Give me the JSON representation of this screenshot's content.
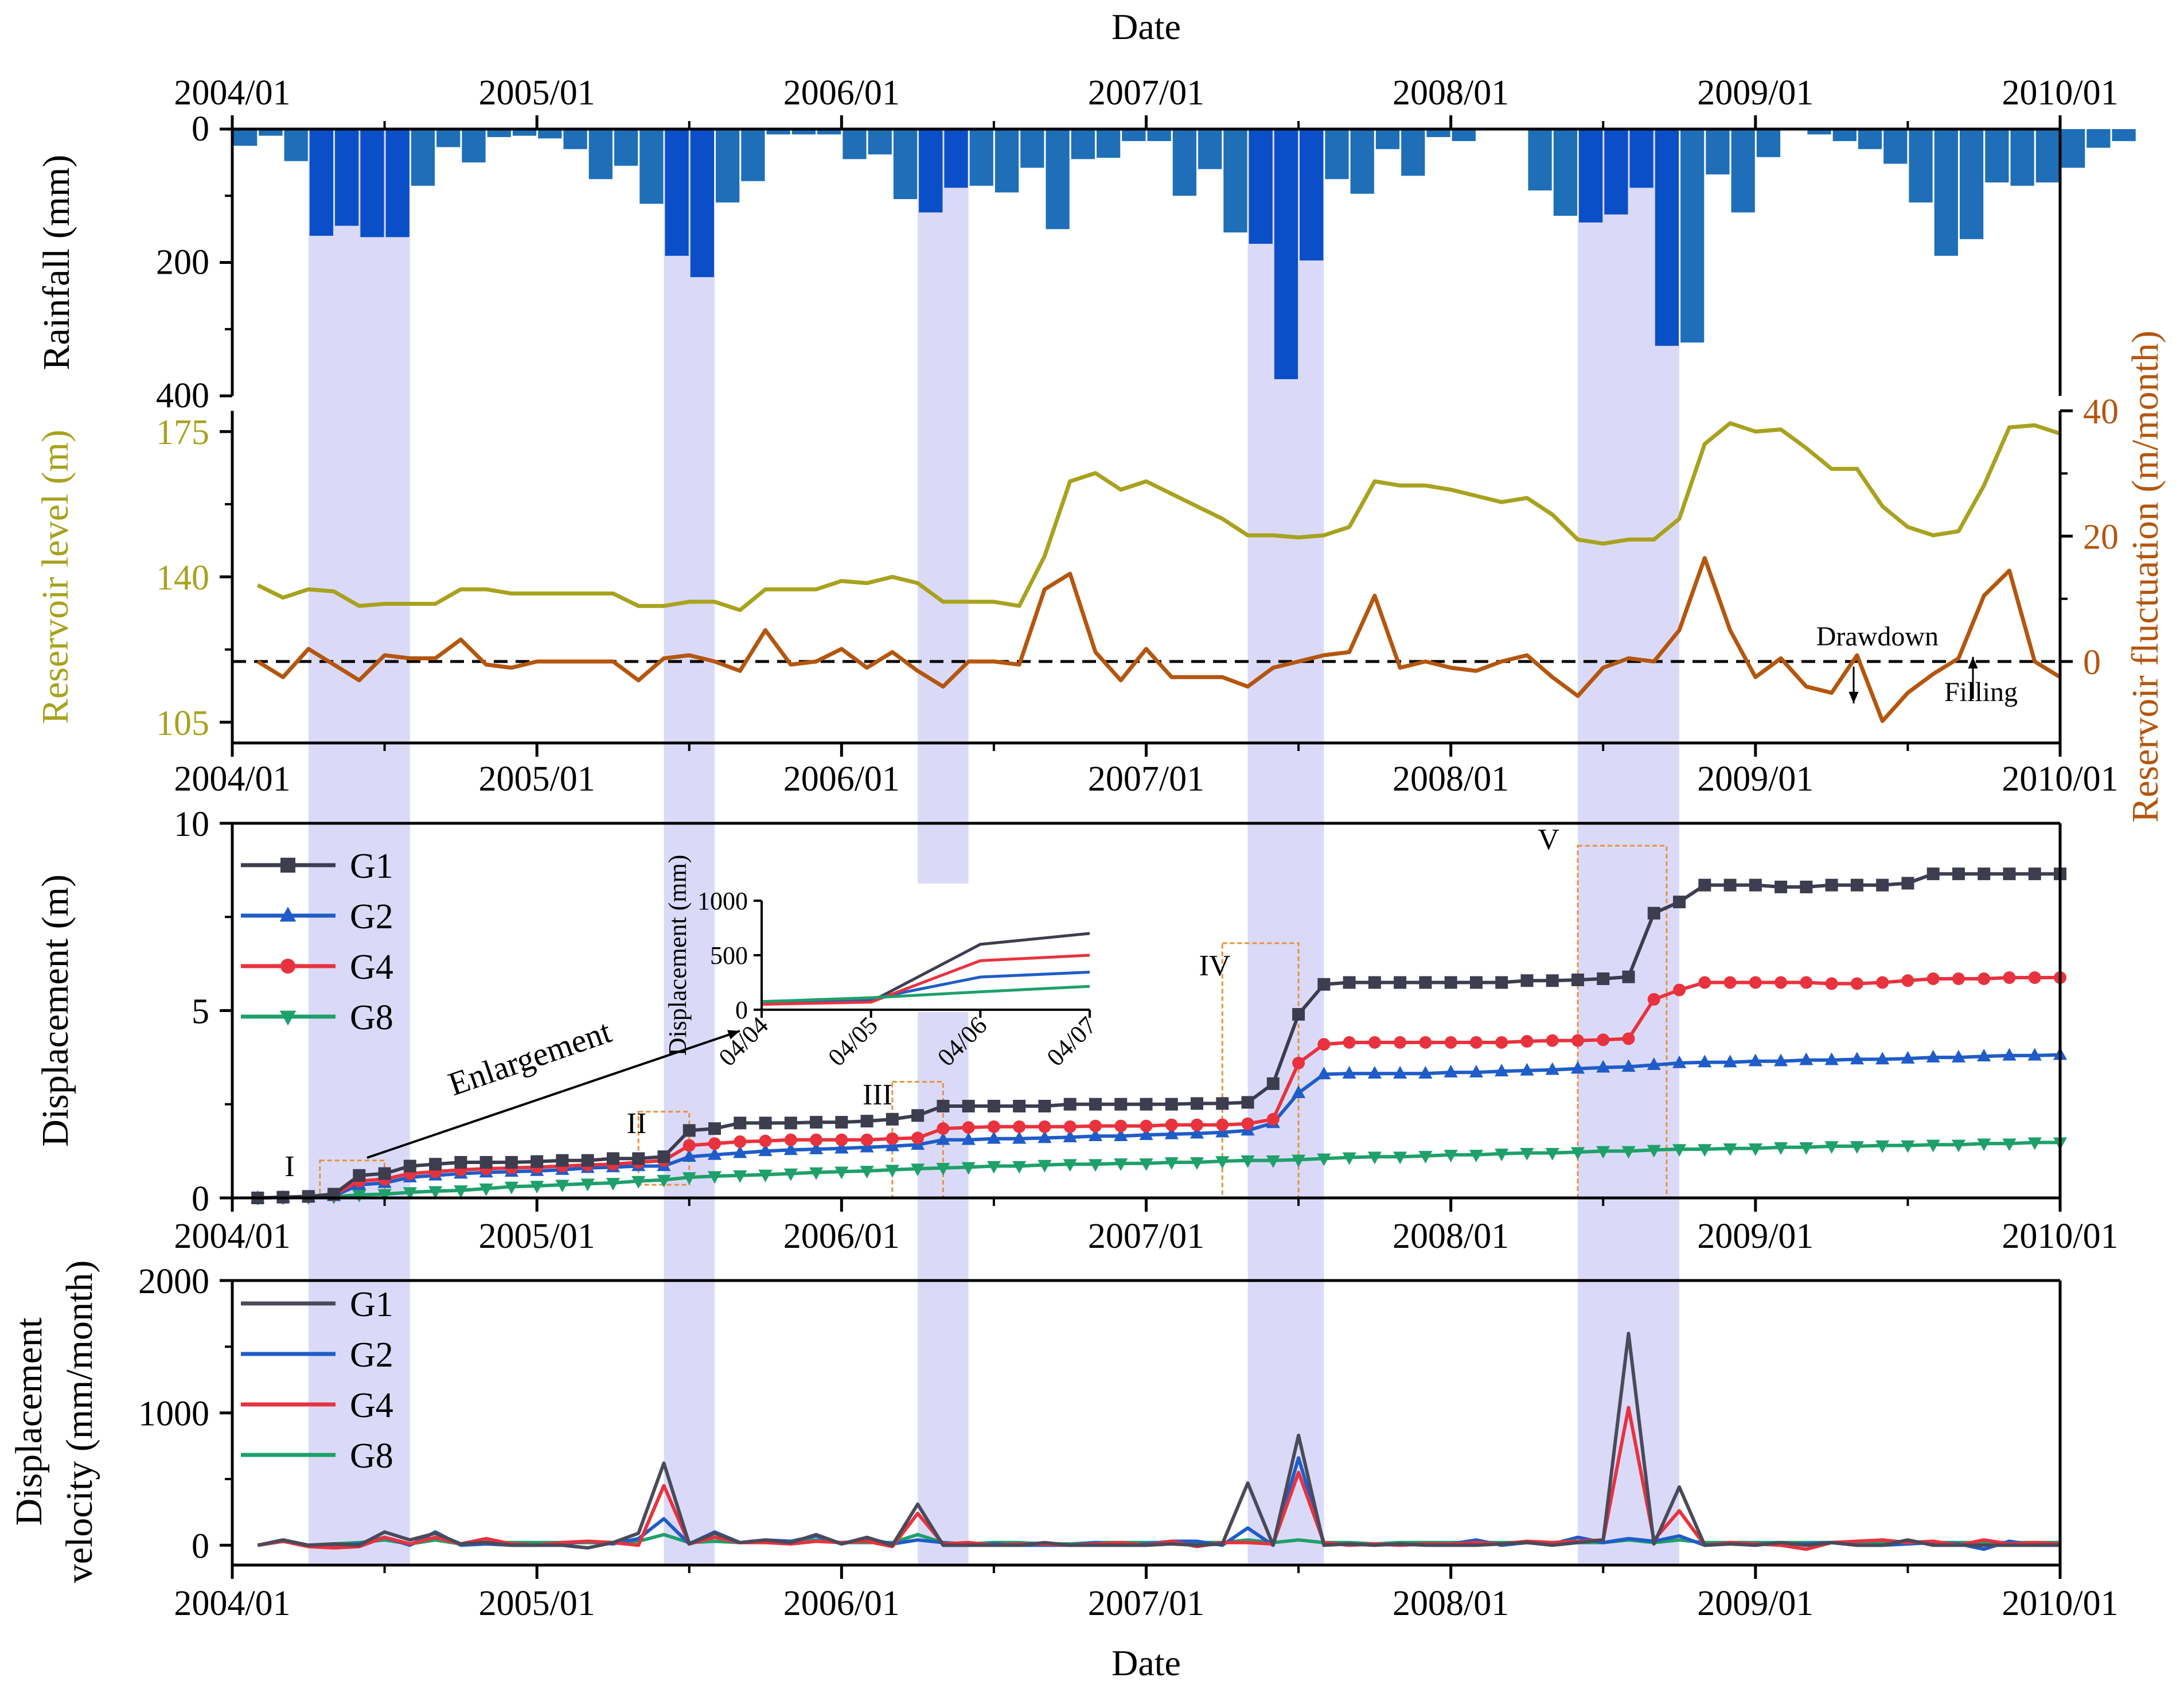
{
  "chart_data": [
    {
      "panel": "rainfall",
      "type": "bar",
      "title": "",
      "xlabel_top": "Date",
      "ylabel": "Rainfall (mm)",
      "y_reversed": true,
      "ylim": [
        0,
        400
      ],
      "yticks": [
        "0",
        "200",
        "400"
      ],
      "x_ticks": [
        "2004/01",
        "2005/01",
        "2006/01",
        "2007/01",
        "2008/01",
        "2009/01",
        "2010/01"
      ],
      "months_start": "2004/01",
      "bar_color": "#1E6FB8",
      "bar_highlight_color": "#0B4FC8",
      "values": [
        25,
        10,
        48,
        160,
        145,
        162,
        162,
        85,
        27,
        50,
        12,
        10,
        14,
        30,
        75,
        55,
        112,
        190,
        222,
        110,
        78,
        8,
        8,
        8,
        45,
        38,
        105,
        125,
        88,
        85,
        95,
        58,
        150,
        45,
        43,
        18,
        18,
        100,
        60,
        155,
        172,
        375,
        197,
        75,
        97,
        30,
        70,
        12,
        18,
        0,
        0,
        92,
        130,
        140,
        128,
        88,
        325,
        320,
        68,
        125,
        42,
        0,
        8,
        18,
        30,
        52,
        110,
        190,
        165,
        80,
        85,
        80,
        58,
        28,
        18
      ]
    },
    {
      "panel": "reservoir",
      "type": "line",
      "ylabel": "Reservoir level (m)",
      "y2label": "Reservoir fluctuation (m/month)",
      "ylim": [
        100,
        180
      ],
      "yticks": [
        "105",
        "140",
        "175"
      ],
      "y2lim": [
        -13,
        40
      ],
      "y2ticks": [
        "0",
        "20",
        "40"
      ],
      "x_ticks": [
        "2004/01",
        "2005/01",
        "2006/01",
        "2007/01",
        "2008/01",
        "2009/01",
        "2010/01"
      ],
      "months_start": "2004/02",
      "annotations": [
        "Drawdown",
        "Filling"
      ],
      "level_color": "#A8A21E",
      "fluct_color": "#B4560E",
      "series": [
        {
          "name": "Reservoir level",
          "values": [
            138,
            135,
            137,
            136.5,
            133,
            133.5,
            133.5,
            133.5,
            137,
            137,
            136,
            136,
            136,
            136,
            136,
            133,
            133,
            134,
            134,
            132,
            137,
            137,
            137,
            139,
            138.5,
            140,
            138.5,
            134,
            134,
            134,
            133,
            145,
            163,
            165,
            161,
            163,
            160,
            157,
            154,
            150,
            150,
            149.5,
            150,
            152,
            163,
            162,
            162,
            161,
            159.5,
            158,
            159,
            155,
            149,
            148,
            149,
            149,
            154,
            172,
            177,
            175,
            175.5,
            171,
            166,
            166,
            157,
            152,
            150,
            151,
            162,
            176,
            176.5,
            174.5
          ]
        },
        {
          "name": "Reservoir fluctuation",
          "values": [
            0,
            -2.5,
            2,
            -0.5,
            -3,
            1,
            0.5,
            0.5,
            3.5,
            -0.5,
            -1,
            0,
            0,
            0,
            0,
            -3,
            0.5,
            1,
            0,
            -1.5,
            5,
            -0.5,
            0,
            2,
            -1,
            1.5,
            -1.5,
            -4,
            0,
            0,
            -0.5,
            11.5,
            14,
            1.5,
            -3,
            2,
            -2.5,
            -2.5,
            -2.5,
            -4,
            -1,
            0,
            1,
            1.5,
            10.5,
            -1,
            0,
            -1,
            -1.5,
            0,
            1,
            -2.5,
            -5.5,
            -1,
            0.5,
            0,
            5,
            16.5,
            5,
            -2.5,
            0.5,
            -4,
            -5,
            1,
            -9.5,
            -5,
            -2,
            0.5,
            10.5,
            14.5,
            0,
            -2.5
          ]
        }
      ]
    },
    {
      "panel": "displacement",
      "type": "line",
      "ylabel": "Displacement (m)",
      "ylim": [
        0,
        10
      ],
      "yticks": [
        "0",
        "5",
        "10"
      ],
      "x_ticks": [
        "2004/01",
        "2005/01",
        "2006/01",
        "2007/01",
        "2008/01",
        "2009/01",
        "2010/01"
      ],
      "months_start": "2004/02",
      "stage_labels": [
        "I",
        "II",
        "III",
        "IV",
        "V"
      ],
      "enlargement_label": "Enlargement",
      "series": [
        {
          "name": "G1",
          "color": "#3D3D50",
          "marker": "square",
          "values": [
            0,
            0.02,
            0.04,
            0.1,
            0.6,
            0.65,
            0.85,
            0.9,
            0.95,
            0.95,
            0.95,
            0.97,
            1.0,
            1.0,
            1.05,
            1.05,
            1.1,
            1.8,
            1.85,
            2.0,
            2.0,
            2.0,
            2.02,
            2.02,
            2.05,
            2.1,
            2.2,
            2.45,
            2.45,
            2.45,
            2.45,
            2.45,
            2.5,
            2.5,
            2.5,
            2.5,
            2.5,
            2.52,
            2.52,
            2.55,
            3.05,
            4.9,
            5.7,
            5.75,
            5.75,
            5.75,
            5.75,
            5.75,
            5.75,
            5.75,
            5.8,
            5.8,
            5.82,
            5.85,
            5.9,
            7.6,
            7.9,
            8.35,
            8.35,
            8.35,
            8.3,
            8.3,
            8.35,
            8.35,
            8.35,
            8.4,
            8.65,
            8.65,
            8.65,
            8.65,
            8.65,
            8.65
          ]
        },
        {
          "name": "G2",
          "color": "#1F5CC8",
          "marker": "triangle-up",
          "values": [
            0,
            0.01,
            0.02,
            0.05,
            0.35,
            0.4,
            0.55,
            0.6,
            0.65,
            0.68,
            0.7,
            0.72,
            0.75,
            0.8,
            0.82,
            0.85,
            0.85,
            1.1,
            1.15,
            1.2,
            1.25,
            1.28,
            1.3,
            1.32,
            1.35,
            1.38,
            1.42,
            1.55,
            1.55,
            1.58,
            1.58,
            1.6,
            1.62,
            1.65,
            1.65,
            1.68,
            1.7,
            1.72,
            1.75,
            1.8,
            2.0,
            2.8,
            3.3,
            3.32,
            3.32,
            3.32,
            3.32,
            3.35,
            3.35,
            3.38,
            3.4,
            3.42,
            3.45,
            3.48,
            3.5,
            3.55,
            3.6,
            3.62,
            3.62,
            3.65,
            3.65,
            3.68,
            3.68,
            3.7,
            3.7,
            3.72,
            3.75,
            3.75,
            3.78,
            3.8,
            3.8,
            3.82
          ]
        },
        {
          "name": "G4",
          "color": "#E8323E",
          "marker": "circle",
          "values": [
            0,
            0.01,
            0.03,
            0.08,
            0.45,
            0.5,
            0.65,
            0.7,
            0.75,
            0.78,
            0.8,
            0.82,
            0.85,
            0.88,
            0.9,
            0.95,
            1.0,
            1.4,
            1.45,
            1.5,
            1.52,
            1.55,
            1.55,
            1.55,
            1.55,
            1.58,
            1.6,
            1.85,
            1.88,
            1.9,
            1.9,
            1.9,
            1.9,
            1.92,
            1.92,
            1.92,
            1.95,
            1.95,
            1.95,
            1.98,
            2.1,
            3.6,
            4.1,
            4.15,
            4.15,
            4.15,
            4.15,
            4.15,
            4.15,
            4.15,
            4.18,
            4.2,
            4.2,
            4.22,
            4.25,
            5.3,
            5.55,
            5.75,
            5.75,
            5.75,
            5.75,
            5.75,
            5.72,
            5.72,
            5.75,
            5.8,
            5.85,
            5.85,
            5.85,
            5.88,
            5.88,
            5.88
          ]
        },
        {
          "name": "G8",
          "color": "#1FA06A",
          "marker": "triangle-down",
          "values": [
            0,
            0.01,
            0.02,
            0.03,
            0.08,
            0.1,
            0.15,
            0.18,
            0.2,
            0.25,
            0.3,
            0.32,
            0.35,
            0.38,
            0.4,
            0.45,
            0.48,
            0.55,
            0.58,
            0.6,
            0.62,
            0.65,
            0.68,
            0.7,
            0.72,
            0.75,
            0.78,
            0.8,
            0.82,
            0.85,
            0.85,
            0.88,
            0.9,
            0.9,
            0.92,
            0.92,
            0.95,
            0.95,
            0.98,
            1.0,
            1.0,
            1.02,
            1.05,
            1.08,
            1.1,
            1.1,
            1.12,
            1.15,
            1.15,
            1.18,
            1.2,
            1.2,
            1.22,
            1.25,
            1.25,
            1.28,
            1.3,
            1.3,
            1.32,
            1.32,
            1.35,
            1.35,
            1.38,
            1.38,
            1.4,
            1.4,
            1.42,
            1.42,
            1.45,
            1.45,
            1.48,
            1.48
          ]
        }
      ],
      "inset": {
        "type": "line",
        "ylabel": "Displacement (mm)",
        "ylim": [
          0,
          1000
        ],
        "yticks": [
          "0",
          "500",
          "1000"
        ],
        "categories": [
          "04/04",
          "04/05",
          "04/06",
          "04/07"
        ],
        "series": [
          {
            "name": "G1",
            "values": [
              50,
              75,
              600,
              700
            ]
          },
          {
            "name": "G2",
            "values": [
              60,
              100,
              300,
              345
            ]
          },
          {
            "name": "G4",
            "values": [
              50,
              70,
              450,
              500
            ]
          },
          {
            "name": "G8",
            "values": [
              75,
              110,
              165,
              215
            ]
          }
        ]
      }
    },
    {
      "panel": "velocity",
      "type": "line",
      "ylabel_line1": "Displacement",
      "ylabel_line2": "velocity (mm/month)",
      "xlabel": "Date",
      "ylim": [
        -150,
        2000
      ],
      "yticks": [
        "0",
        "1000",
        "2000"
      ],
      "x_ticks": [
        "2004/01",
        "2005/01",
        "2006/01",
        "2007/01",
        "2008/01",
        "2009/01",
        "2010/01"
      ],
      "months_start": "2004/02",
      "series": [
        {
          "name": "G1",
          "color": "#4A4A5A",
          "values": [
            0,
            40,
            0,
            10,
            0,
            100,
            40,
            90,
            10,
            20,
            0,
            0,
            0,
            -20,
            20,
            90,
            620,
            10,
            90,
            20,
            40,
            20,
            80,
            10,
            60,
            0,
            310,
            0,
            0,
            0,
            0,
            20,
            0,
            0,
            0,
            0,
            10,
            0,
            10,
            470,
            0,
            830,
            0,
            10,
            0,
            10,
            0,
            0,
            0,
            10,
            20,
            0,
            20,
            40,
            1600,
            10,
            440,
            0,
            10,
            0,
            20,
            0,
            20,
            0,
            0,
            40,
            0,
            0,
            0,
            0,
            0,
            0
          ]
        },
        {
          "name": "G2",
          "color": "#1F5CC8",
          "values": [
            0,
            30,
            0,
            0,
            10,
            60,
            0,
            100,
            0,
            10,
            0,
            0,
            10,
            30,
            10,
            50,
            200,
            10,
            100,
            20,
            40,
            30,
            70,
            10,
            50,
            10,
            40,
            20,
            0,
            10,
            0,
            0,
            0,
            20,
            0,
            10,
            30,
            30,
            0,
            130,
            0,
            660,
            20,
            0,
            10,
            0,
            10,
            10,
            40,
            0,
            20,
            10,
            60,
            20,
            50,
            30,
            70,
            0,
            10,
            10,
            10,
            10,
            20,
            0,
            0,
            10,
            20,
            10,
            -30,
            30,
            0,
            10
          ]
        },
        {
          "name": "G4",
          "color": "#E8323E",
          "values": [
            0,
            30,
            -10,
            -20,
            -10,
            60,
            10,
            60,
            10,
            50,
            10,
            0,
            20,
            30,
            20,
            0,
            450,
            10,
            60,
            20,
            20,
            10,
            30,
            20,
            30,
            -10,
            240,
            10,
            20,
            0,
            10,
            10,
            0,
            10,
            20,
            0,
            30,
            -10,
            20,
            20,
            10,
            550,
            20,
            0,
            10,
            0,
            10,
            10,
            20,
            10,
            30,
            20,
            30,
            40,
            1040,
            40,
            260,
            0,
            20,
            10,
            0,
            -30,
            20,
            30,
            40,
            20,
            30,
            0,
            40,
            10,
            20,
            10
          ]
        },
        {
          "name": "G8",
          "color": "#1FA06A",
          "values": [
            0,
            40,
            0,
            10,
            20,
            40,
            10,
            40,
            10,
            20,
            20,
            20,
            20,
            20,
            20,
            30,
            80,
            20,
            30,
            20,
            30,
            20,
            40,
            20,
            20,
            20,
            80,
            20,
            10,
            20,
            20,
            10,
            10,
            20,
            20,
            20,
            20,
            20,
            20,
            40,
            20,
            40,
            20,
            20,
            10,
            20,
            20,
            20,
            20,
            20,
            20,
            20,
            20,
            20,
            40,
            20,
            40,
            20,
            20,
            20,
            20,
            20,
            20,
            20,
            20,
            20,
            20,
            20,
            20,
            20,
            20,
            20
          ]
        }
      ]
    }
  ],
  "highlight_bands": [
    {
      "label": "2004-04 to 2004-06",
      "start": "2004/04",
      "end": "2004/07"
    },
    {
      "label": "2005-06 to 2005-07",
      "start": "2005/06",
      "end": "2005/07"
    },
    {
      "label": "2006-04 to 2006-05",
      "start": "2006/04",
      "end": "2006/05"
    },
    {
      "label": "2007-05 to 2007-07",
      "start": "2007/05",
      "end": "2007/07"
    },
    {
      "label": "2008-06 to 2008-09",
      "start": "2008/06",
      "end": "2008/09"
    }
  ],
  "colors": {
    "band": "#D8D8F8",
    "axis": "#000000",
    "dashed": "#000000",
    "stage_box": "#E8913A",
    "arrow": "#000000"
  }
}
